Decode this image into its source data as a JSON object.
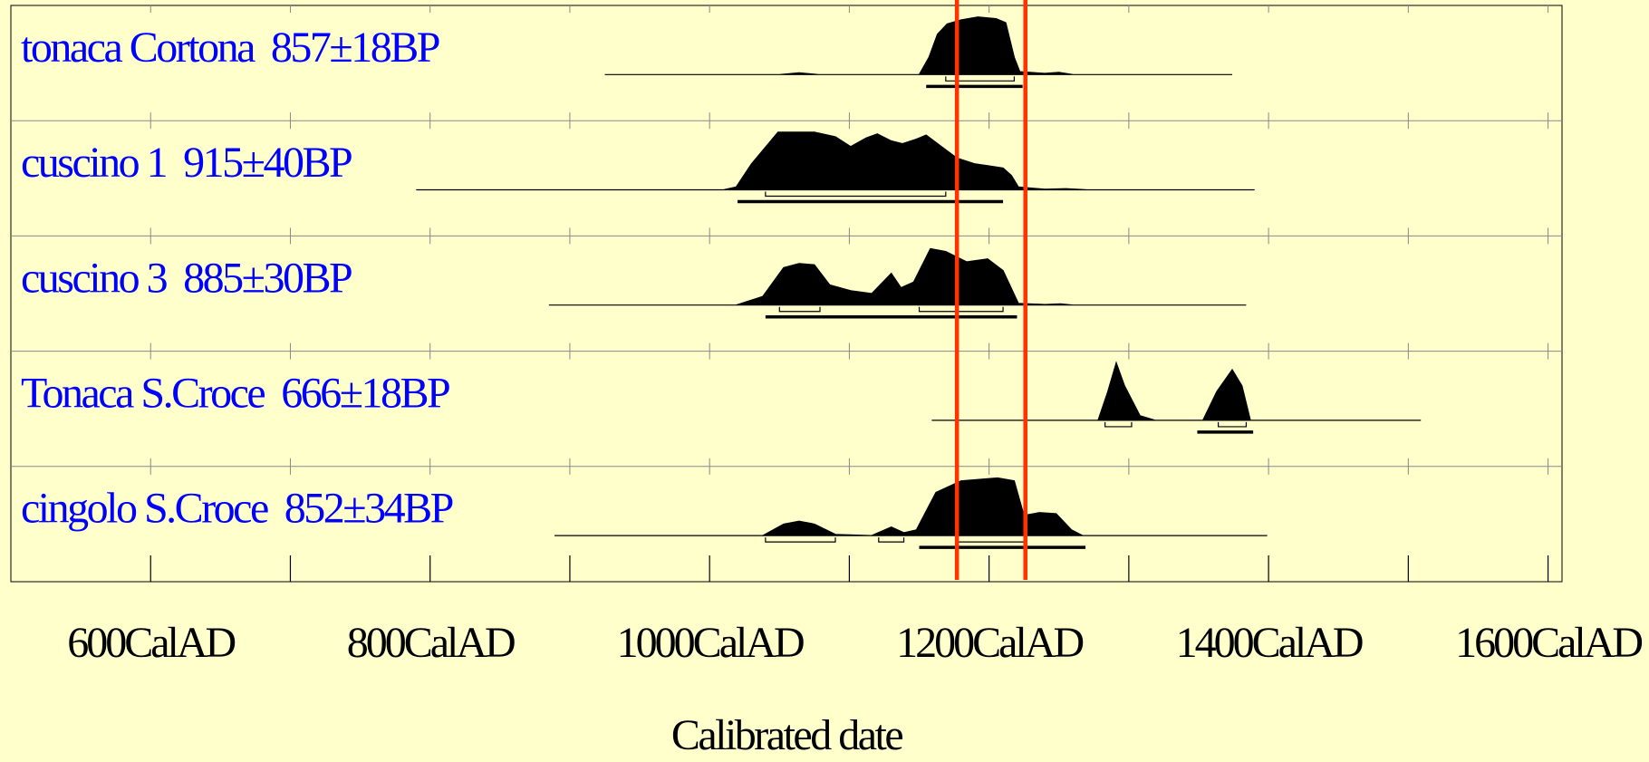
{
  "chart_data": {
    "type": "multiplot",
    "x_label": "Calibrated date",
    "xlim": [
      500,
      1610
    ],
    "xticks": [
      {
        "value": 600,
        "label": "600CalAD"
      },
      {
        "value": 800,
        "label": "800CalAD"
      },
      {
        "value": 1000,
        "label": "1000CalAD"
      },
      {
        "value": 1200,
        "label": "1200CalAD"
      },
      {
        "value": 1400,
        "label": "1400CalAD"
      },
      {
        "value": 1600,
        "label": "1600CalAD"
      }
    ],
    "minor_xticks": [
      700,
      900,
      1100,
      1300,
      1500
    ],
    "markers": [
      1177,
      1226
    ],
    "marker_color": "#ff3300",
    "label_color": "#0000ff",
    "fill_color": "#000000",
    "background": "#ffffcc",
    "series": [
      {
        "name": "tonaca Cortona  857±18BP",
        "density_x": [
          925,
          1050,
          1064,
          1078,
          1150,
          1157,
          1163,
          1170,
          1180,
          1192,
          1205,
          1212,
          1218,
          1222,
          1240,
          1250,
          1260,
          1374
        ],
        "density": [
          0,
          0,
          0.03,
          0,
          0,
          0.3,
          0.7,
          0.88,
          0.95,
          1,
          0.97,
          0.9,
          0.3,
          0.05,
          0.02,
          0.04,
          0,
          0
        ],
        "range_68": [
          [
            1169,
            1218
          ]
        ],
        "range_95": [
          [
            1155,
            1224
          ]
        ]
      },
      {
        "name": "cuscino 1  915±40BP",
        "density_x": [
          790,
          1010,
          1019,
          1030,
          1049,
          1075,
          1090,
          1101,
          1112,
          1120,
          1130,
          1138,
          1148,
          1155,
          1166,
          1177,
          1190,
          1199,
          1210,
          1216,
          1221,
          1240,
          1255,
          1270,
          1390
        ],
        "density": [
          0,
          0,
          0.05,
          0.45,
          1,
          1,
          0.92,
          0.75,
          0.9,
          0.97,
          0.85,
          0.8,
          0.88,
          0.95,
          0.75,
          0.55,
          0.45,
          0.42,
          0.38,
          0.25,
          0.05,
          0.01,
          0.02,
          0,
          0
        ],
        "range_68": [
          [
            1040,
            1169
          ]
        ],
        "range_95": [
          [
            1020,
            1210
          ]
        ]
      },
      {
        "name": "cuscino 3  885±30BP",
        "density_x": [
          885,
          1019,
          1038,
          1053,
          1064,
          1075,
          1086,
          1101,
          1116,
          1130,
          1137,
          1146,
          1158,
          1169,
          1184,
          1199,
          1210,
          1221,
          1240,
          1251,
          1260,
          1384
        ],
        "density": [
          0,
          0,
          0.15,
          0.65,
          0.72,
          0.7,
          0.35,
          0.25,
          0.2,
          0.55,
          0.3,
          0.4,
          0.98,
          0.93,
          0.75,
          0.8,
          0.6,
          0.03,
          0.01,
          0.02,
          0,
          0
        ],
        "range_68": [
          [
            1050,
            1079
          ],
          [
            1150,
            1210
          ]
        ],
        "range_95": [
          [
            1040,
            1220
          ]
        ]
      },
      {
        "name": "Tonaca S.Croce  666±18BP",
        "density_x": [
          1159,
          1278,
          1285,
          1291,
          1297,
          1308,
          1319,
          1353,
          1363,
          1374,
          1381,
          1387,
          1509
        ],
        "density": [
          0,
          0,
          0.5,
          1,
          0.6,
          0.08,
          0,
          0,
          0.5,
          0.88,
          0.6,
          0,
          0
        ],
        "range_68": [
          [
            1283,
            1302
          ],
          [
            1364,
            1384
          ]
        ],
        "range_95": [
          [
            1349,
            1389
          ]
        ]
      },
      {
        "name": "cingolo S.Croce  852±34BP",
        "density_x": [
          889,
          1038,
          1053,
          1064,
          1075,
          1090,
          1116,
          1130,
          1139,
          1148,
          1162,
          1180,
          1206,
          1218,
          1225,
          1236,
          1248,
          1259,
          1267,
          1399
        ],
        "density": [
          0,
          0,
          0.2,
          0.25,
          0.2,
          0.02,
          0,
          0.15,
          0.05,
          0.1,
          0.75,
          0.95,
          1,
          0.95,
          0.35,
          0.4,
          0.38,
          0.1,
          0,
          0
        ],
        "range_68": [
          [
            1040,
            1090
          ],
          [
            1121,
            1139
          ],
          [
            1177,
            1226
          ]
        ],
        "range_95": [
          [
            1150,
            1269
          ]
        ]
      }
    ]
  }
}
